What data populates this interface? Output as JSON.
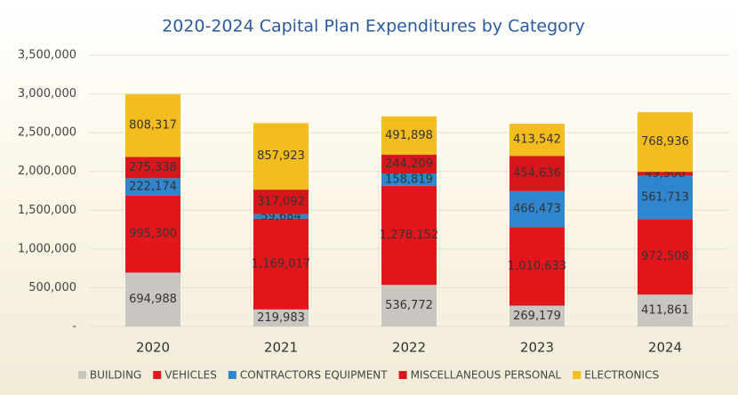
{
  "chart_data": {
    "type": "stacked_bar",
    "title": "2020-2024 Capital Plan Expenditures by Category",
    "categories": [
      "2020",
      "2021",
      "2022",
      "2023",
      "2024"
    ],
    "series": [
      {
        "name": "BUILDING",
        "color": "#c9c5c0",
        "values": [
          694988,
          219983,
          536772,
          269179,
          411861
        ],
        "value_labels": [
          "694,988",
          "219,983",
          "536,772",
          "269,179",
          "411,861"
        ]
      },
      {
        "name": "VEHICLES",
        "color": "#e3161c",
        "values": [
          995300,
          1169017,
          1278152,
          1010633,
          972508
        ],
        "value_labels": [
          "995,300",
          "1,169,017",
          "1,278,152",
          "1,010,633",
          "972,508"
        ]
      },
      {
        "name": "CONTRACTORS EQUIPMENT",
        "color": "#2f86cf",
        "values": [
          222174,
          59684,
          158819,
          466473,
          561713
        ],
        "value_labels": [
          "222,174",
          "59,684",
          "158,819",
          "466,473",
          "561,713"
        ]
      },
      {
        "name": "MISCELLANEOUS PERSONAL",
        "color": "#d8171c",
        "values": [
          275338,
          317092,
          244209,
          454636,
          49500
        ],
        "value_labels": [
          "275,338",
          "317,092",
          "244,209",
          "454,636",
          "49,500"
        ]
      },
      {
        "name": "ELECTRONICS",
        "color": "#f4bd1f",
        "values": [
          808317,
          857923,
          491898,
          413542,
          768936
        ],
        "value_labels": [
          "808,317",
          "857,923",
          "491,898",
          "413,542",
          "768,936"
        ]
      }
    ],
    "ylim": [
      0,
      3500000
    ],
    "yticks": [
      {
        "value": 0,
        "label": "-"
      },
      {
        "value": 500000,
        "label": "500,000"
      },
      {
        "value": 1000000,
        "label": "1,000,000"
      },
      {
        "value": 1500000,
        "label": "1,500,000"
      },
      {
        "value": 2000000,
        "label": "2,000,000"
      },
      {
        "value": 2500000,
        "label": "2,500,000"
      },
      {
        "value": 3000000,
        "label": "3,000,000"
      },
      {
        "value": 3500000,
        "label": "3,500,000"
      }
    ],
    "grid": true,
    "legend": "bottom"
  }
}
